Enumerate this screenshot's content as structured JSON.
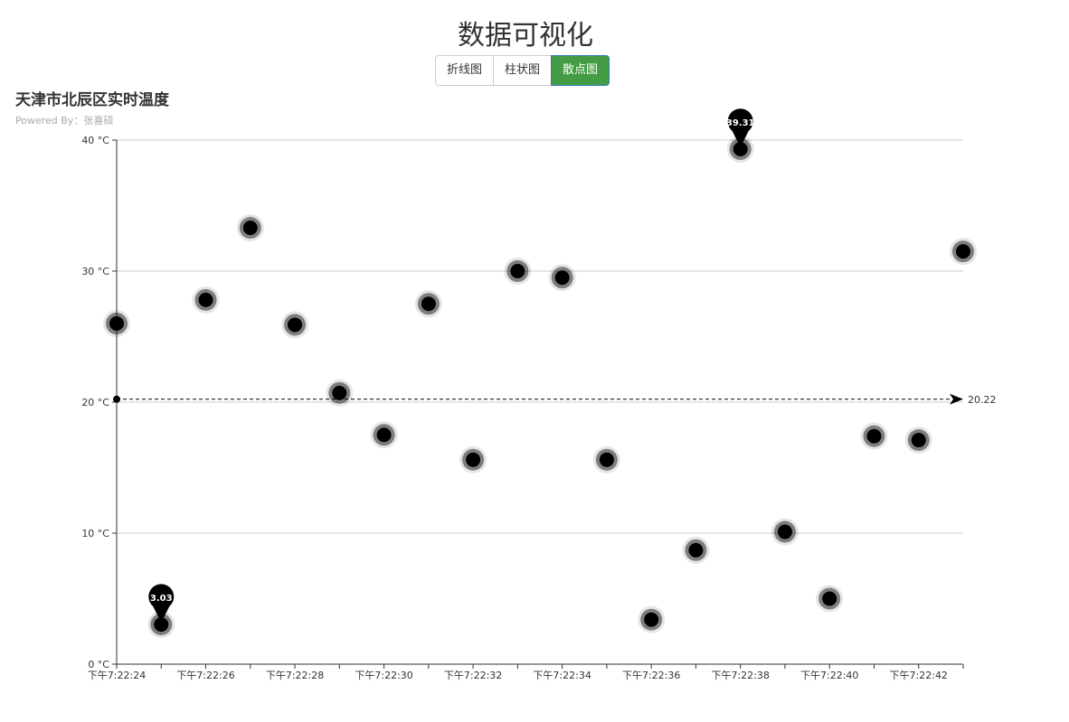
{
  "header": {
    "title": "数据可视化"
  },
  "tabs": [
    {
      "label": "折线图",
      "active": false
    },
    {
      "label": "柱状图",
      "active": false
    },
    {
      "label": "散点图",
      "active": true
    }
  ],
  "colors": {
    "active_tab": "#449d44",
    "points": "#000000",
    "grid": "#cccccc"
  },
  "chart_data": {
    "type": "scatter",
    "title": "天津市北辰区实时温度",
    "subtitle": "Powered By：张喜硕",
    "x": [
      "下午7:22:24",
      "下午7:22:25",
      "下午7:22:26",
      "下午7:22:27",
      "下午7:22:28",
      "下午7:22:29",
      "下午7:22:30",
      "下午7:22:31",
      "下午7:22:32",
      "下午7:22:33",
      "下午7:22:34",
      "下午7:22:35",
      "下午7:22:36",
      "下午7:22:37",
      "下午7:22:38",
      "下午7:22:39",
      "下午7:22:40",
      "下午7:22:41",
      "下午7:22:42",
      "下午7:22:43"
    ],
    "x_tick_labels": [
      "下午7:22:24",
      "下午7:22:26",
      "下午7:22:28",
      "下午7:22:30",
      "下午7:22:32",
      "下午7:22:34",
      "下午7:22:36",
      "下午7:22:38",
      "下午7:22:40",
      "下午7:22:42"
    ],
    "values": [
      26.0,
      3.03,
      27.8,
      33.3,
      25.9,
      20.7,
      17.5,
      27.5,
      15.6,
      30.0,
      29.5,
      15.6,
      3.4,
      8.7,
      39.31,
      10.1,
      5.0,
      17.4,
      17.1,
      31.5
    ],
    "y_tick_labels": [
      "0 °C",
      "10 °C",
      "20 °C",
      "30 °C",
      "40 °C"
    ],
    "ylim": [
      0,
      40
    ],
    "y_unit": "°C",
    "grid": true,
    "mark_points": [
      {
        "label": "39.31",
        "value": 39.31,
        "index": 14
      },
      {
        "label": "3.03",
        "value": 3.03,
        "index": 1
      }
    ],
    "mark_line": {
      "label": "20.22",
      "value": 20.22
    }
  }
}
